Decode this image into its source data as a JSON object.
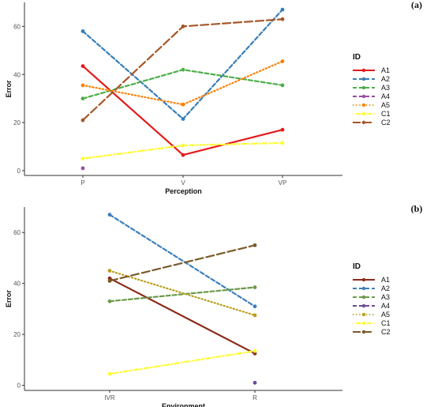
{
  "chart_data": [
    {
      "type": "line",
      "panel_label": "(a)",
      "xlabel": "Perception",
      "ylabel": "Error",
      "categories": [
        "P",
        "V",
        "VP"
      ],
      "ylim": [
        -2,
        70
      ],
      "yticks": [
        0,
        20,
        40,
        60
      ],
      "grid": false,
      "legend_title": "ID",
      "legend_position": "right",
      "series": [
        {
          "name": "A1",
          "color": "#e41a1c",
          "dash": "solid",
          "values": [
            43.5,
            6.5,
            17
          ]
        },
        {
          "name": "A2",
          "color": "#377eb8",
          "dash": "dashed",
          "values": [
            58,
            21.5,
            67
          ]
        },
        {
          "name": "A3",
          "color": "#4daf4a",
          "dash": "dashed",
          "values": [
            30,
            42,
            35.5
          ]
        },
        {
          "name": "A4",
          "color": "#984ea3",
          "dash": "dashed",
          "values": [
            1,
            null,
            null
          ]
        },
        {
          "name": "A5",
          "color": "#ff7f00",
          "dash": "dotted",
          "values": [
            35.5,
            27.5,
            45.5
          ]
        },
        {
          "name": "C1",
          "color": "#ffff33",
          "dash": "dotdash",
          "values": [
            5,
            10.5,
            11.5
          ]
        },
        {
          "name": "C2",
          "color": "#a65628",
          "dash": "longdash",
          "values": [
            21,
            60,
            63
          ]
        }
      ]
    },
    {
      "type": "line",
      "panel_label": "(b)",
      "xlabel": "Environment",
      "ylabel": "Error",
      "categories": [
        "IVR",
        "R"
      ],
      "ylim": [
        -2,
        70
      ],
      "yticks": [
        0,
        20,
        40,
        60
      ],
      "grid": false,
      "legend_title": "ID",
      "legend_position": "right",
      "series": [
        {
          "name": "A1",
          "color": "#8b2c1c",
          "dash": "solid",
          "values": [
            42,
            12.5
          ]
        },
        {
          "name": "A2",
          "color": "#3f7fbd",
          "dash": "dashed",
          "values": [
            67,
            31
          ]
        },
        {
          "name": "A3",
          "color": "#6a9a4a",
          "dash": "dashed",
          "values": [
            33,
            38.5
          ]
        },
        {
          "name": "A4",
          "color": "#6b4a9a",
          "dash": "dashed",
          "values": [
            null,
            1
          ]
        },
        {
          "name": "A5",
          "color": "#b8a020",
          "dash": "dotted",
          "values": [
            45,
            27.5
          ]
        },
        {
          "name": "C1",
          "color": "#ffff33",
          "dash": "dotdash",
          "values": [
            4.5,
            13.5
          ]
        },
        {
          "name": "C2",
          "color": "#7a5a2a",
          "dash": "longdash",
          "values": [
            41,
            55
          ]
        }
      ]
    }
  ]
}
